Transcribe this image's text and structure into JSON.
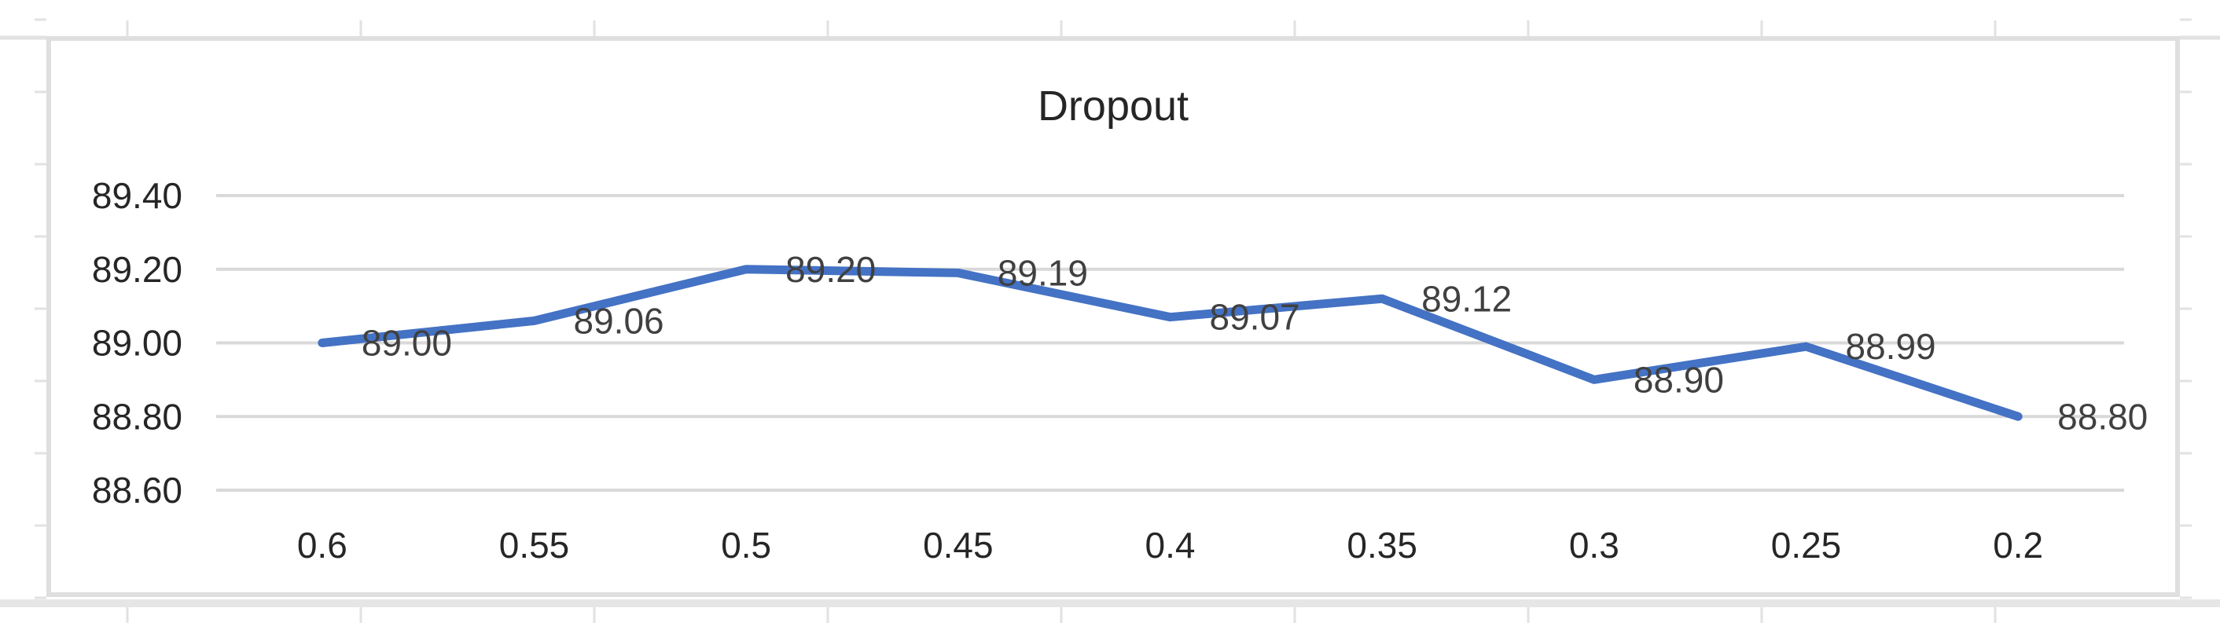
{
  "chart_data": {
    "type": "line",
    "title": "Dropout",
    "categories": [
      "0.6",
      "0.55",
      "0.5",
      "0.45",
      "0.4",
      "0.35",
      "0.3",
      "0.25",
      "0.2"
    ],
    "series": [
      {
        "name": "Dropout",
        "values": [
          89.0,
          89.06,
          89.2,
          89.19,
          89.07,
          89.12,
          88.9,
          88.99,
          88.8
        ],
        "color": "#4472C4"
      }
    ],
    "data_labels": [
      "89.00",
      "89.06",
      "89.20",
      "89.19",
      "89.07",
      "89.12",
      "88.90",
      "88.99",
      "88.80"
    ],
    "xlabel": "",
    "ylabel": "",
    "y_axis": {
      "min": 88.6,
      "max": 89.4,
      "step": 0.2,
      "tick_labels": [
        "89.40",
        "89.20",
        "89.00",
        "88.80",
        "88.60"
      ]
    },
    "grid": true,
    "legend": false,
    "layout_hints": {
      "gridlines": "horizontal-only",
      "data_label_position": "right-of-point",
      "title_position": "top-center"
    },
    "colors": {
      "line": "#4472C4",
      "gridline": "#D9D9D9",
      "frame_border": "#DFDFDF",
      "sheet_gridline": "#E2E2E2",
      "title_text": "#262626",
      "axis_text": "#262626",
      "data_label_text": "#404040",
      "background": "#FFFFFF",
      "bottom_shadow": "#E6E6E6"
    }
  }
}
